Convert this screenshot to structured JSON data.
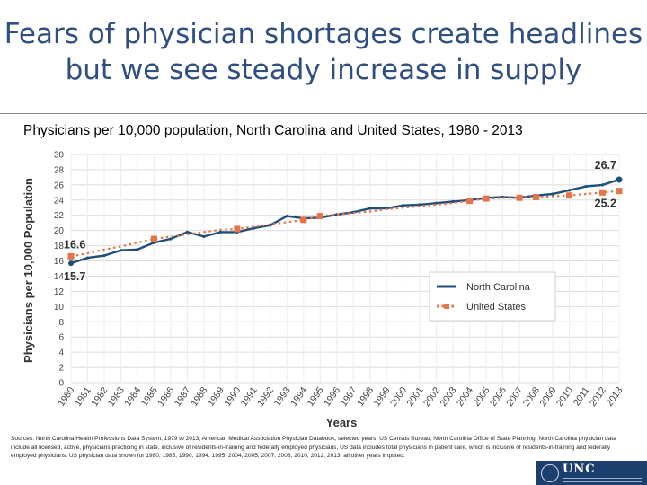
{
  "header": {
    "title_line1": "Fears of physician shortages create headlines",
    "title_line2": "but we see steady increase in supply"
  },
  "subtitle": "Physicians per 10,000 population, North Carolina and United States, 1980 - 2013",
  "colors": {
    "title": "#2f4f82",
    "nc": "#1f4e79",
    "us": "#e2754a"
  },
  "logo": {
    "text": "UNC"
  },
  "sources": "Sources: North Carolina Health Professions Data System, 1979 to 2013; American Medical Association Physician Databook, selected years; US Census Bureau; North Carolina Office of State Planning. North Carolina physician data include all licensed, active, physicians practicing in state, inclusive of residents-in-training and federally employed physicians, US data includes total physicians in patient care, which is inclusive of residents-in-training and federally employed physicians. US physician data shown for 1980, 1985, 1990, 1994, 1995, 2004, 2005, 2007, 2008, 2010, 2012, 2013; all other years imputed.",
  "chart_data": {
    "type": "line",
    "title": "Physicians per 10,000 population, North Carolina and United States, 1980 - 2013",
    "xlabel": "Years",
    "ylabel": "Physicians per 10,000 Population",
    "x": [
      "1980",
      "1981",
      "1982",
      "1983",
      "1984",
      "1985",
      "1986",
      "1987",
      "1988",
      "1989",
      "1990",
      "1991",
      "1992",
      "1993",
      "1994",
      "1995",
      "1996",
      "1997",
      "1998",
      "1999",
      "2000",
      "2001",
      "2002",
      "2003",
      "2004",
      "2005",
      "2006",
      "2007",
      "2008",
      "2009",
      "2010",
      "2011",
      "2012",
      "2013"
    ],
    "ylim": [
      0,
      30
    ],
    "yticks": [
      "0",
      "2",
      "4",
      "6",
      "8",
      "10",
      "12",
      "14",
      "16",
      "18",
      "20",
      "22",
      "24",
      "26",
      "28",
      "30"
    ],
    "grid": true,
    "legend": "right",
    "series": [
      {
        "name": "North Carolina",
        "style": "solid",
        "values": [
          15.7,
          16.4,
          16.7,
          17.4,
          17.5,
          18.4,
          18.9,
          19.8,
          19.2,
          19.8,
          19.8,
          20.3,
          20.7,
          21.9,
          21.6,
          21.7,
          22.1,
          22.4,
          22.9,
          22.9,
          23.3,
          23.4,
          23.6,
          23.8,
          24.0,
          24.3,
          24.4,
          24.3,
          24.6,
          24.8,
          25.3,
          25.8,
          26.0,
          26.7
        ]
      },
      {
        "name": "United States",
        "style": "dotted",
        "values": [
          16.6,
          17.0,
          17.5,
          17.9,
          18.4,
          18.9,
          19.2,
          19.5,
          19.8,
          20.1,
          20.2,
          20.5,
          20.8,
          21.1,
          21.4,
          21.9,
          22.1,
          22.3,
          22.5,
          22.8,
          23.0,
          23.2,
          23.4,
          23.6,
          23.9,
          24.2,
          24.3,
          24.3,
          24.4,
          24.5,
          24.6,
          24.8,
          25.0,
          25.2
        ]
      }
    ],
    "markers": {
      "United States": [
        "1980",
        "1985",
        "1990",
        "1994",
        "1995",
        "2004",
        "2005",
        "2007",
        "2008",
        "2010",
        "2012",
        "2013"
      ]
    },
    "annotations": [
      {
        "text": "16.6",
        "series": "United States",
        "at": "1980"
      },
      {
        "text": "15.7",
        "series": "North Carolina",
        "at": "1980"
      },
      {
        "text": "26.7",
        "series": "North Carolina",
        "at": "2013"
      },
      {
        "text": "25.2",
        "series": "United States",
        "at": "2013"
      }
    ]
  }
}
